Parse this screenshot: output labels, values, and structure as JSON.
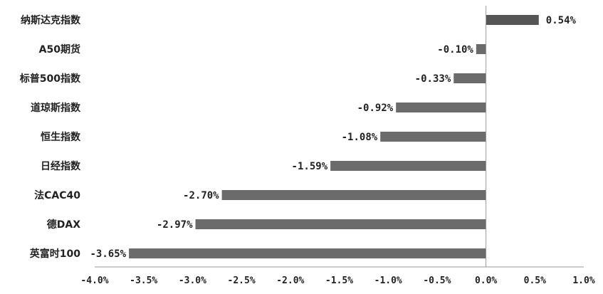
{
  "chart_data": {
    "type": "bar",
    "orientation": "horizontal",
    "categories": [
      "纳斯达克指数",
      "A50期货",
      "标普500指数",
      "道琼斯指数",
      "恒生指数",
      "日经指数",
      "法CAC40",
      "德DAX",
      "英富时100"
    ],
    "values": [
      0.54,
      -0.1,
      -0.33,
      -0.92,
      -1.08,
      -1.59,
      -2.7,
      -2.97,
      -3.65
    ],
    "value_labels": [
      "0.54%",
      "-0.10%",
      "-0.33%",
      "-0.92%",
      "-1.08%",
      "-1.59%",
      "-2.70%",
      "-2.97%",
      "-3.65%"
    ],
    "x_ticks": [
      -4.0,
      -3.5,
      -3.0,
      -2.5,
      -2.0,
      -1.5,
      -1.0,
      -0.5,
      0.0,
      0.5,
      1.0
    ],
    "x_tick_labels": [
      "-4.0%",
      "-3.5%",
      "-3.0%",
      "-2.5%",
      "-2.0%",
      "-1.5%",
      "-1.0%",
      "-0.5%",
      "0.0%",
      "0.5%",
      "1.0%"
    ],
    "xlim": [
      -4.0,
      1.0
    ],
    "grid": false,
    "legend": "none",
    "colors": {
      "bar": "#6b6b6b",
      "positive_bar": "#555555",
      "axis": "#9a9a9a",
      "text": "#222222"
    }
  }
}
